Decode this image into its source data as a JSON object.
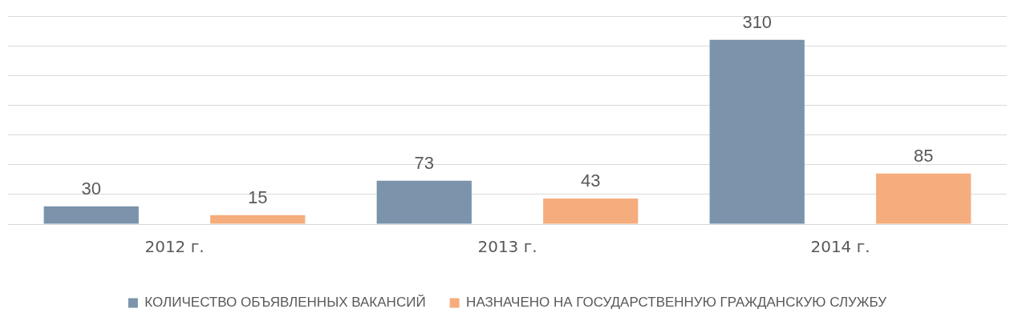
{
  "chart_data": {
    "type": "bar",
    "categories": [
      "2012 г.",
      "2013 г.",
      "2014 г."
    ],
    "series": [
      {
        "name": "КОЛИЧЕСТВО ОБЪЯВЛЕННЫХ ВАКАНСИЙ",
        "color": "#7b93ab",
        "values": [
          30,
          73,
          310
        ]
      },
      {
        "name": "НАЗНАЧЕНО НА ГОСУДАРСТВЕННУЮ ГРАЖДАНСКУЮ СЛУЖБУ",
        "color": "#f5ad7d",
        "values": [
          15,
          43,
          85
        ]
      }
    ],
    "ylim": [
      0,
      350
    ],
    "yticks": [
      {
        "value": 0,
        "label": null
      },
      {
        "value": 50,
        "label": null
      },
      {
        "value": 100,
        "label": null
      },
      {
        "value": 150,
        "label": null
      },
      {
        "value": 200,
        "label": null
      },
      {
        "value": 250,
        "label": null
      },
      {
        "value": 300,
        "label": null
      },
      {
        "value": 350,
        "label": null
      }
    ],
    "grid": "y",
    "legend": "bottom",
    "data_labels": true,
    "tick_labels": "x"
  }
}
